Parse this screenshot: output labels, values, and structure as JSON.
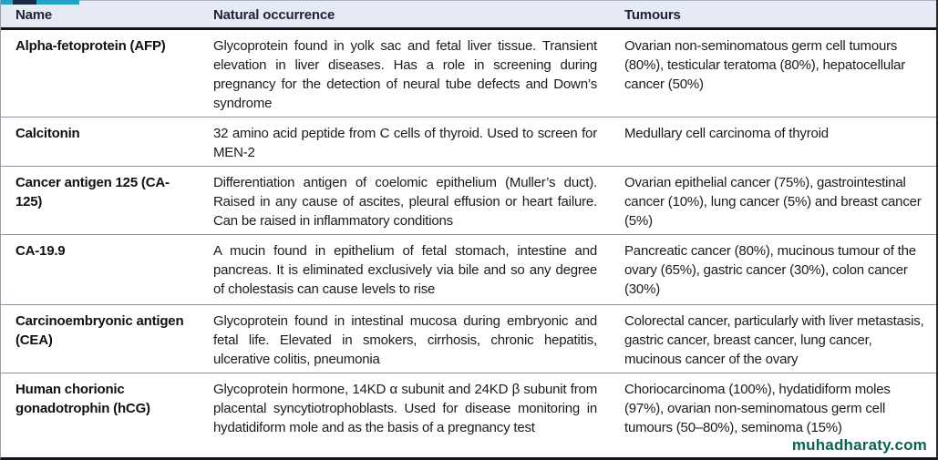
{
  "colors": {
    "accent_teal": "#23a3c6",
    "accent_dark_navy": "#1b2a45",
    "header_background": "#e6eaf4",
    "header_text": "#1c2433",
    "body_text": "#1b1b1b",
    "row_divider": "#8d949c",
    "watermark_text": "#0a6354"
  },
  "watermark": "muhadharaty.com",
  "table": {
    "columns": [
      {
        "key": "name",
        "label": "Name"
      },
      {
        "key": "occurrence",
        "label": "Natural occurrence"
      },
      {
        "key": "tumours",
        "label": "Tumours"
      }
    ],
    "rows": [
      {
        "name": "Alpha-fetoprotein (AFP)",
        "occurrence": "Glycoprotein found in yolk sac and fetal liver tissue. Transient elevation in liver diseases. Has a role in screening during pregnancy for the detection of neural tube defects and Down’s syndrome",
        "tumours": "Ovarian non-seminomatous germ cell tumours (80%), testicular teratoma (80%), hepatocellular cancer (50%)"
      },
      {
        "name": "Calcitonin",
        "occurrence": "32 amino acid peptide from C cells of thyroid. Used to screen for MEN-2",
        "tumours": "Medullary cell carcinoma of thyroid"
      },
      {
        "name": "Cancer antigen 125 (CA-125)",
        "occurrence": "Differentiation antigen of coelomic epithelium (Muller’s duct). Raised in any cause of ascites, pleural effusion or heart failure. Can be raised in inflammatory conditions",
        "tumours": "Ovarian epithelial cancer (75%), gastrointestinal cancer (10%), lung cancer (5%) and breast cancer (5%)"
      },
      {
        "name": "CA-19.9",
        "occurrence": "A mucin found in epithelium of fetal stomach, intestine and pancreas. It is eliminated exclusively via bile and so any degree of cholestasis can cause levels to rise",
        "tumours": "Pancreatic cancer (80%), mucinous tumour of the ovary (65%), gastric cancer (30%), colon cancer (30%)"
      },
      {
        "name": "Carcinoembryonic antigen (CEA)",
        "occurrence": "Glycoprotein found in intestinal mucosa during embryonic and fetal life. Elevated in smokers, cirrhosis, chronic hepatitis, ulcerative colitis, pneumonia",
        "tumours": "Colorectal cancer, particularly with liver metastasis, gastric cancer, breast cancer, lung cancer, mucinous cancer of the ovary"
      },
      {
        "name": "Human chorionic gonadotrophin (hCG)",
        "occurrence": "Glycoprotein hormone, 14KD α subunit and 24KD β subunit from placental syncytiotrophoblasts. Used for disease monitoring in hydatidiform mole and as the basis of a pregnancy test",
        "tumours": "Choriocarcinoma (100%), hydatidiform moles (97%), ovarian non-seminomatous germ cell tumours (50–80%), seminoma (15%)"
      }
    ]
  }
}
